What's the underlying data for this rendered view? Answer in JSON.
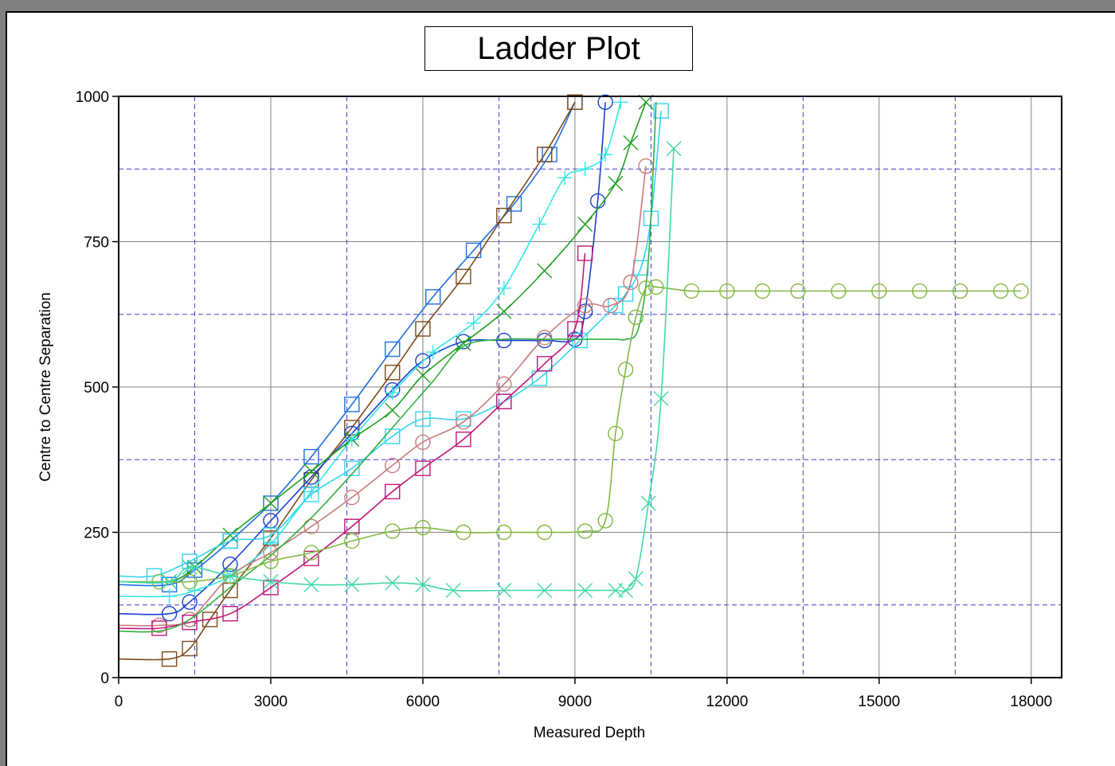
{
  "window": {
    "title_bar_color": "#808080"
  },
  "chart_data": {
    "type": "line",
    "title": "Ladder Plot",
    "xlabel": "Measured Depth",
    "ylabel": "Centre to Centre Separation",
    "xlim": [
      0,
      18600
    ],
    "ylim": [
      0,
      1000
    ],
    "xticks": [
      "0",
      "3000",
      "6000",
      "9000",
      "12000",
      "15000",
      "18000"
    ],
    "yticks": [
      "0",
      "250",
      "500",
      "750",
      "1000"
    ],
    "grid": "solid gray major grid with dashed blue minor grid",
    "minor_x": [
      1500,
      4500,
      7500,
      10500,
      13500,
      16500
    ],
    "minor_y": [
      125,
      375,
      625,
      875
    ],
    "series": [
      {
        "color": "#1f6fe0",
        "marker": "square",
        "x": [
          0,
          1000,
          1500,
          2200,
          3000,
          3800,
          4600,
          5400,
          6200,
          7000,
          7800,
          8500,
          9000
        ],
        "y": [
          160,
          160,
          185,
          235,
          300,
          380,
          470,
          565,
          655,
          735,
          815,
          900,
          990
        ]
      },
      {
        "color": "#7a4a1a",
        "marker": "square",
        "x": [
          0,
          1000,
          1400,
          1800,
          2200,
          3000,
          3800,
          4600,
          5400,
          6000,
          6800,
          7600,
          8400,
          9000
        ],
        "y": [
          32,
          32,
          50,
          100,
          150,
          240,
          340,
          430,
          525,
          600,
          690,
          795,
          900,
          990
        ]
      },
      {
        "color": "#1a3fd0",
        "marker": "circle",
        "x": [
          0,
          1000,
          1400,
          2200,
          3000,
          3800,
          4600,
          5400,
          6000,
          6800,
          7600,
          8400,
          9000,
          9200,
          9450,
          9600
        ],
        "y": [
          110,
          110,
          130,
          195,
          270,
          345,
          420,
          495,
          545,
          578,
          580,
          580,
          582,
          630,
          820,
          990
        ]
      },
      {
        "color": "#20a020",
        "marker": "cross",
        "x": [
          0,
          1000,
          1500,
          2200,
          3000,
          3800,
          4600,
          5400,
          6000,
          6800,
          7600,
          8400,
          9200,
          9800,
          10100,
          10400
        ],
        "y": [
          165,
          165,
          190,
          245,
          300,
          355,
          410,
          460,
          520,
          575,
          630,
          700,
          780,
          850,
          920,
          990
        ]
      },
      {
        "color": "#33e6e6",
        "marker": "plus",
        "x": [
          0,
          1000,
          1500,
          2200,
          3000,
          3800,
          4600,
          5400,
          6200,
          7000,
          7600,
          8300,
          8800,
          9200,
          9600,
          9900
        ],
        "y": [
          140,
          140,
          150,
          175,
          230,
          320,
          410,
          490,
          560,
          610,
          670,
          780,
          860,
          875,
          900,
          990
        ]
      },
      {
        "color": "#35d3f0",
        "marker": "square",
        "x": [
          0,
          700,
          1400,
          2200,
          3000,
          3800,
          4600,
          5400,
          6000,
          6800,
          7600,
          8300,
          9100,
          9800,
          10000,
          10300,
          10500,
          10700
        ],
        "y": [
          175,
          175,
          200,
          235,
          245,
          315,
          360,
          415,
          445,
          445,
          475,
          515,
          580,
          640,
          660,
          705,
          790,
          975
        ]
      },
      {
        "color": "#c97b7b",
        "marker": "circle",
        "x": [
          0,
          800,
          1400,
          2200,
          3000,
          3800,
          4600,
          5400,
          6000,
          6800,
          7600,
          8400,
          9200,
          9700,
          10100,
          10400
        ],
        "y": [
          90,
          90,
          100,
          175,
          215,
          260,
          310,
          365,
          405,
          440,
          505,
          585,
          640,
          640,
          680,
          880
        ]
      },
      {
        "color": "#c01878",
        "marker": "square",
        "x": [
          0,
          800,
          1400,
          2200,
          3000,
          3800,
          4600,
          5400,
          6000,
          6800,
          7600,
          8400,
          9000,
          9200
        ],
        "y": [
          85,
          85,
          95,
          110,
          155,
          205,
          260,
          320,
          360,
          410,
          475,
          540,
          600,
          730
        ]
      },
      {
        "color": "#30b040",
        "marker": "none",
        "x": [
          0,
          800,
          1400,
          2200,
          3000,
          3800,
          4600,
          5400,
          6200,
          6800,
          7600,
          8400,
          9200,
          9800,
          10000,
          10250,
          10450,
          10600
        ],
        "y": [
          80,
          80,
          100,
          155,
          210,
          275,
          350,
          430,
          510,
          570,
          582,
          582,
          582,
          582,
          582,
          600,
          720,
          990
        ]
      },
      {
        "color": "#80b840",
        "marker": "circle",
        "x": [
          0,
          800,
          1400,
          2200,
          3000,
          3800,
          4600,
          5400,
          6000,
          6800,
          7600,
          8400,
          9200,
          9600,
          9800,
          10000,
          10200,
          10400,
          10600,
          11300,
          12000,
          12700,
          13400,
          14200,
          15000,
          15800,
          16600,
          17400,
          17800
        ],
        "y": [
          165,
          165,
          165,
          175,
          200,
          215,
          235,
          252,
          258,
          250,
          250,
          250,
          252,
          270,
          420,
          530,
          620,
          670,
          672,
          665,
          665,
          665,
          665,
          665,
          665,
          665,
          665,
          665,
          665
        ]
      },
      {
        "color": "#40d8a8",
        "marker": "cross",
        "x": [
          0,
          1000,
          1400,
          2200,
          3000,
          3800,
          4600,
          5400,
          6000,
          6600,
          7600,
          8400,
          9200,
          9800,
          10000,
          10200,
          10450,
          10700,
          10950
        ],
        "y": [
          165,
          165,
          190,
          175,
          165,
          160,
          160,
          163,
          160,
          150,
          150,
          150,
          150,
          150,
          150,
          170,
          300,
          480,
          910
        ]
      }
    ]
  }
}
